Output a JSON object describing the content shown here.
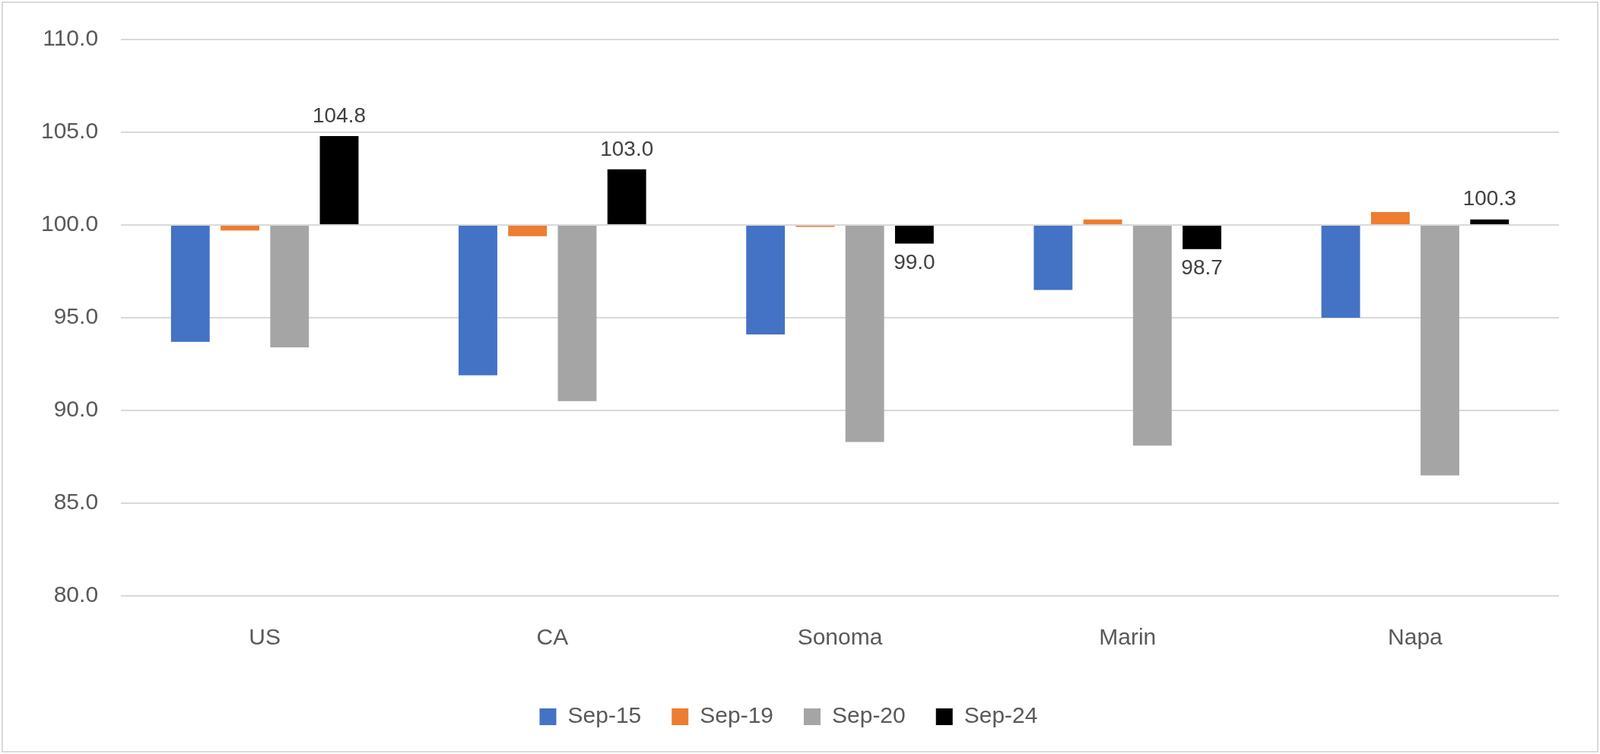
{
  "chart_data": {
    "type": "bar",
    "categories": [
      "US",
      "CA",
      "Sonoma",
      "Marin",
      "Napa"
    ],
    "baseline": 100,
    "series": [
      {
        "name": "Sep-15",
        "color": "#4472C4",
        "values": [
          93.7,
          91.9,
          94.1,
          96.5,
          95.0
        ]
      },
      {
        "name": "Sep-19",
        "color": "#ED7D31",
        "values": [
          99.7,
          99.4,
          99.9,
          100.3,
          100.7
        ]
      },
      {
        "name": "Sep-20",
        "color": "#A5A5A5",
        "values": [
          93.4,
          90.5,
          88.3,
          88.1,
          86.5
        ]
      },
      {
        "name": "Sep-24",
        "color": "#000000",
        "values": [
          104.8,
          103.0,
          99.0,
          98.7,
          100.3
        ],
        "data_labels": true,
        "value_labels": [
          "104.8",
          "103.0",
          "99.0",
          "98.7",
          "100.3"
        ]
      }
    ],
    "ylim": [
      80,
      110
    ],
    "yticks": [
      {
        "value": 80,
        "label": "80.0"
      },
      {
        "value": 85,
        "label": "85.0"
      },
      {
        "value": 90,
        "label": "90.0"
      },
      {
        "value": 95,
        "label": "95.0"
      },
      {
        "value": 100,
        "label": "100.0"
      },
      {
        "value": 105,
        "label": "105.0"
      },
      {
        "value": 110,
        "label": "110.0"
      }
    ],
    "grid": true,
    "legend": "bottom"
  }
}
